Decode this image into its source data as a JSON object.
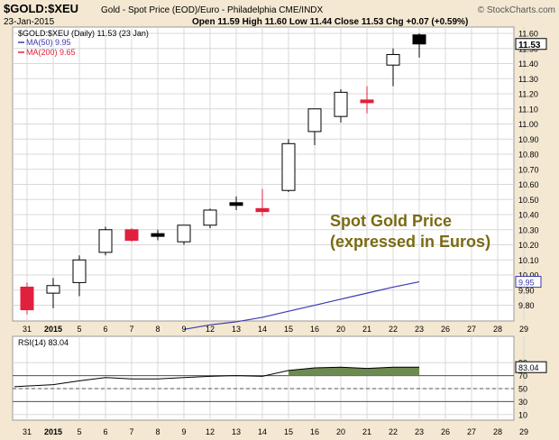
{
  "header": {
    "symbol": "$GOLD:$XEU",
    "date": "23-Jan-2015",
    "description": "Gold - Spot Price (EOD)/Euro - Philadelphia  CME/INDX",
    "ohlc": "Open 11.59  High 11.60  Low 11.44  Close 11.53  Chg +0.07 (+0.59%)",
    "copyright": "© StockCharts.com"
  },
  "legend": {
    "main": "$GOLD:$XEU (Daily) 11.53 (23 Jan)",
    "ma50": "MA(50) 9.95",
    "ma200": "MA(200) 9.65",
    "rsi": "RSI(14) 83.04"
  },
  "annotation": {
    "line1": "Spot Gold Price",
    "line2": "(expressed in Euros)"
  },
  "colors": {
    "background": "#f4e8d2",
    "panel": "#ffffff",
    "grid": "#d8d8d8",
    "up": "#ffffff",
    "down": "#e0203c",
    "ma50": "#3a3ab0",
    "ma200": "#e0203c",
    "rsi_fill": "#6d8a50",
    "annotation": "#7a6a12"
  },
  "chart_data": [
    {
      "type": "candlestick",
      "title": "$GOLD:$XEU (Daily) 11.53 (23 Jan)",
      "x": [
        "31",
        "2015",
        "5",
        "6",
        "7",
        "8",
        "9",
        "12",
        "13",
        "14",
        "15",
        "16",
        "20",
        "21",
        "22",
        "23",
        "26",
        "27",
        "28",
        "29"
      ],
      "ylim": [
        9.7,
        11.65
      ],
      "yticks": [
        9.8,
        9.9,
        10.0,
        10.1,
        10.2,
        10.3,
        10.4,
        10.5,
        10.6,
        10.7,
        10.8,
        10.9,
        11.0,
        11.1,
        11.2,
        11.3,
        11.4,
        11.5,
        11.6
      ],
      "candles": [
        {
          "date": "31",
          "open": 9.77,
          "high": 9.95,
          "low": 9.74,
          "close": 9.92,
          "color": "red"
        },
        {
          "date": "2015",
          "open": 9.88,
          "high": 9.98,
          "low": 9.78,
          "close": 9.93,
          "color": "hollow"
        },
        {
          "date": "5",
          "open": 9.95,
          "high": 10.13,
          "low": 9.86,
          "close": 10.1,
          "color": "hollow"
        },
        {
          "date": "6",
          "open": 10.15,
          "high": 10.32,
          "low": 10.13,
          "close": 10.3,
          "color": "hollow"
        },
        {
          "date": "7",
          "open": 10.3,
          "high": 10.31,
          "low": 10.22,
          "close": 10.23,
          "color": "red"
        },
        {
          "date": "8",
          "open": 10.26,
          "high": 10.3,
          "low": 10.23,
          "close": 10.27,
          "color": "black"
        },
        {
          "date": "9",
          "open": 10.22,
          "high": 10.33,
          "low": 10.2,
          "close": 10.33,
          "color": "hollow"
        },
        {
          "date": "12",
          "open": 10.33,
          "high": 10.44,
          "low": 10.31,
          "close": 10.43,
          "color": "hollow"
        },
        {
          "date": "13",
          "open": 10.47,
          "high": 10.52,
          "low": 10.43,
          "close": 10.47,
          "color": "black"
        },
        {
          "date": "14",
          "open": 10.44,
          "high": 10.57,
          "low": 10.39,
          "close": 10.42,
          "color": "red"
        },
        {
          "date": "15",
          "open": 10.56,
          "high": 10.9,
          "low": 10.55,
          "close": 10.87,
          "color": "hollow"
        },
        {
          "date": "16",
          "open": 10.95,
          "high": 11.1,
          "low": 10.86,
          "close": 11.1,
          "color": "hollow"
        },
        {
          "date": "20",
          "open": 11.05,
          "high": 11.23,
          "low": 11.01,
          "close": 11.21,
          "color": "hollow"
        },
        {
          "date": "21",
          "open": 11.15,
          "high": 11.25,
          "low": 11.07,
          "close": 11.15,
          "color": "red"
        },
        {
          "date": "22",
          "open": 11.39,
          "high": 11.5,
          "low": 11.25,
          "close": 11.46,
          "color": "hollow"
        },
        {
          "date": "23",
          "open": 11.59,
          "high": 11.6,
          "low": 11.44,
          "close": 11.53,
          "color": "black"
        }
      ],
      "series": [
        {
          "name": "MA(50) 9.95",
          "x": [
            "9",
            "12",
            "13",
            "14",
            "15",
            "16",
            "20",
            "21",
            "22",
            "23"
          ],
          "values": [
            9.64,
            9.67,
            9.69,
            9.72,
            9.76,
            9.8,
            9.84,
            9.88,
            9.92,
            9.955
          ]
        },
        {
          "name": "MA(200) 9.65",
          "x": [],
          "values": []
        }
      ],
      "last_label": "11.53",
      "ma50_label": "9.95"
    },
    {
      "type": "area",
      "title": "RSI(14) 83.04",
      "x": [
        "31",
        "2015",
        "5",
        "6",
        "7",
        "8",
        "9",
        "12",
        "13",
        "14",
        "15",
        "16",
        "20",
        "21",
        "22",
        "23"
      ],
      "values": [
        54,
        56,
        62,
        67,
        65,
        65,
        67,
        69,
        70,
        69,
        78,
        82,
        83,
        81,
        83,
        83.04
      ],
      "ylim": [
        0,
        100
      ],
      "yticks": [
        10,
        30,
        50,
        70,
        90
      ],
      "reference_lines": [
        70,
        50,
        30
      ],
      "last_label": "83.04"
    }
  ]
}
